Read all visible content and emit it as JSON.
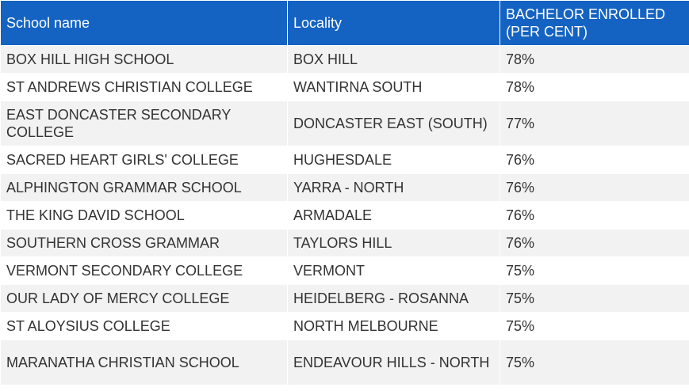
{
  "table": {
    "header": [
      "School name",
      "Locality",
      "BACHELOR ENROLLED (PER CENT)"
    ],
    "rows": [
      [
        "BOX HILL HIGH SCHOOL",
        "BOX HILL",
        "78%"
      ],
      [
        "ST ANDREWS CHRISTIAN COLLEGE",
        "WANTIRNA SOUTH",
        "78%"
      ],
      [
        "EAST DONCASTER SECONDARY COLLEGE",
        "DONCASTER EAST (SOUTH)",
        "77%"
      ],
      [
        "SACRED HEART GIRLS' COLLEGE",
        "HUGHESDALE",
        "76%"
      ],
      [
        "ALPHINGTON GRAMMAR SCHOOL",
        "YARRA - NORTH",
        "76%"
      ],
      [
        "THE KING DAVID SCHOOL",
        "ARMADALE",
        "76%"
      ],
      [
        "SOUTHERN CROSS GRAMMAR",
        "TAYLORS HILL",
        "76%"
      ],
      [
        "VERMONT SECONDARY COLLEGE",
        "VERMONT",
        "75%"
      ],
      [
        "OUR LADY OF MERCY COLLEGE",
        "HEIDELBERG - ROSANNA",
        "75%"
      ],
      [
        "ST ALOYSIUS COLLEGE",
        "NORTH MELBOURNE",
        "75%"
      ],
      [
        "MARANATHA CHRISTIAN SCHOOL",
        "ENDEAVOUR HILLS - NORTH",
        "75%"
      ]
    ]
  }
}
